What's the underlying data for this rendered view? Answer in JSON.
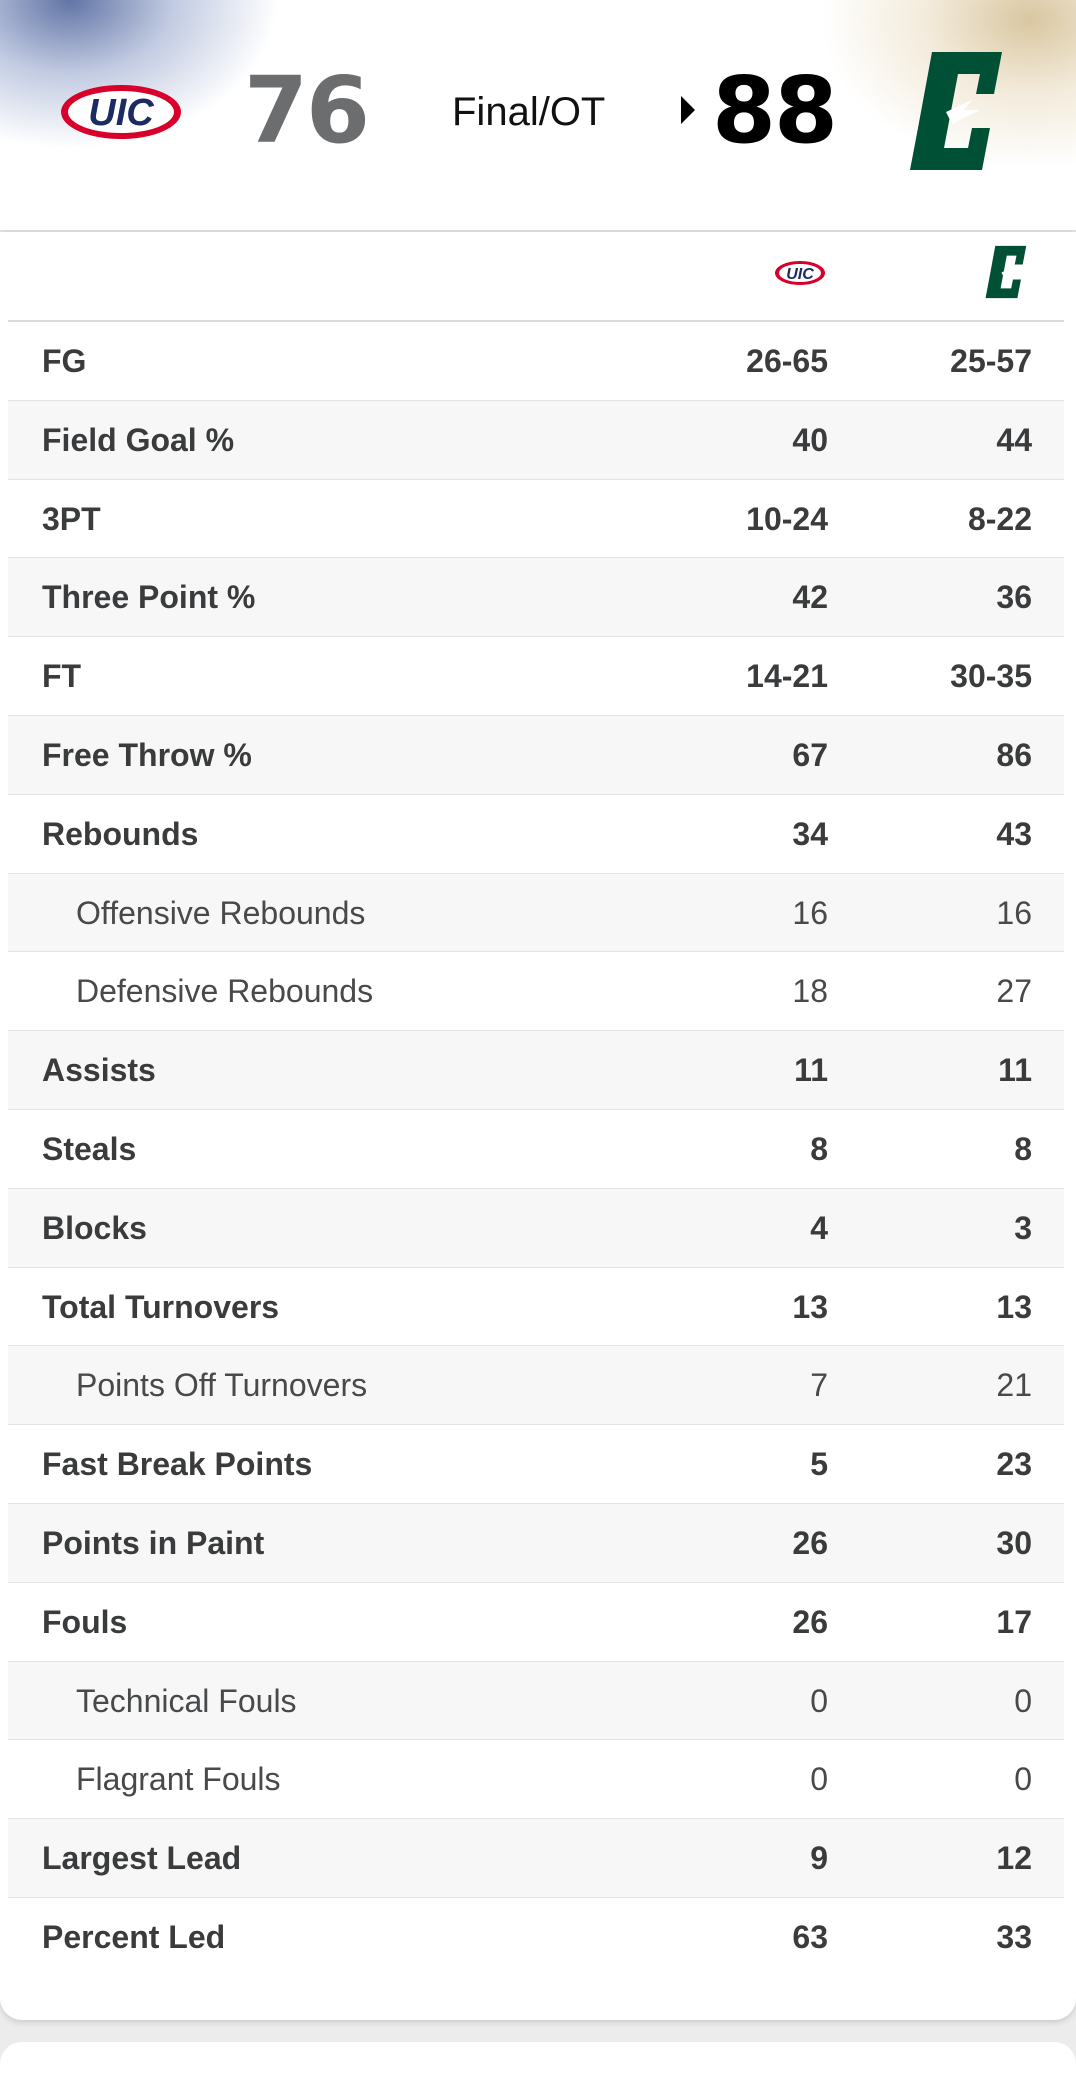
{
  "header": {
    "away_team": {
      "logo_text": "UIC",
      "score": "76",
      "color": "#1d2b63",
      "accent": "#d8002b"
    },
    "home_team": {
      "logo_text": "C",
      "score": "88",
      "color": "#005035"
    },
    "status": "Final/OT",
    "winner_indicator": "triangle-right-icon"
  },
  "stats": {
    "columns": [
      {
        "team": "UIC",
        "logo_text": "UIC"
      },
      {
        "team": "Charlotte",
        "logo_text": "C"
      }
    ],
    "rows": [
      {
        "label": "FG",
        "away": "26-65",
        "home": "25-57",
        "sub": false
      },
      {
        "label": "Field Goal %",
        "away": "40",
        "home": "44",
        "sub": false
      },
      {
        "label": "3PT",
        "away": "10-24",
        "home": "8-22",
        "sub": false
      },
      {
        "label": "Three Point %",
        "away": "42",
        "home": "36",
        "sub": false
      },
      {
        "label": "FT",
        "away": "14-21",
        "home": "30-35",
        "sub": false
      },
      {
        "label": "Free Throw %",
        "away": "67",
        "home": "86",
        "sub": false
      },
      {
        "label": "Rebounds",
        "away": "34",
        "home": "43",
        "sub": false
      },
      {
        "label": "Offensive Rebounds",
        "away": "16",
        "home": "16",
        "sub": true
      },
      {
        "label": "Defensive Rebounds",
        "away": "18",
        "home": "27",
        "sub": true
      },
      {
        "label": "Assists",
        "away": "11",
        "home": "11",
        "sub": false
      },
      {
        "label": "Steals",
        "away": "8",
        "home": "8",
        "sub": false
      },
      {
        "label": "Blocks",
        "away": "4",
        "home": "3",
        "sub": false
      },
      {
        "label": "Total Turnovers",
        "away": "13",
        "home": "13",
        "sub": false
      },
      {
        "label": "Points Off Turnovers",
        "away": "7",
        "home": "21",
        "sub": true
      },
      {
        "label": "Fast Break Points",
        "away": "5",
        "home": "23",
        "sub": false
      },
      {
        "label": "Points in Paint",
        "away": "26",
        "home": "30",
        "sub": false
      },
      {
        "label": "Fouls",
        "away": "26",
        "home": "17",
        "sub": false
      },
      {
        "label": "Technical Fouls",
        "away": "0",
        "home": "0",
        "sub": true
      },
      {
        "label": "Flagrant Fouls",
        "away": "0",
        "home": "0",
        "sub": true
      },
      {
        "label": "Largest Lead",
        "away": "9",
        "home": "12",
        "sub": false
      },
      {
        "label": "Percent Led",
        "away": "63",
        "home": "33",
        "sub": false
      }
    ]
  }
}
